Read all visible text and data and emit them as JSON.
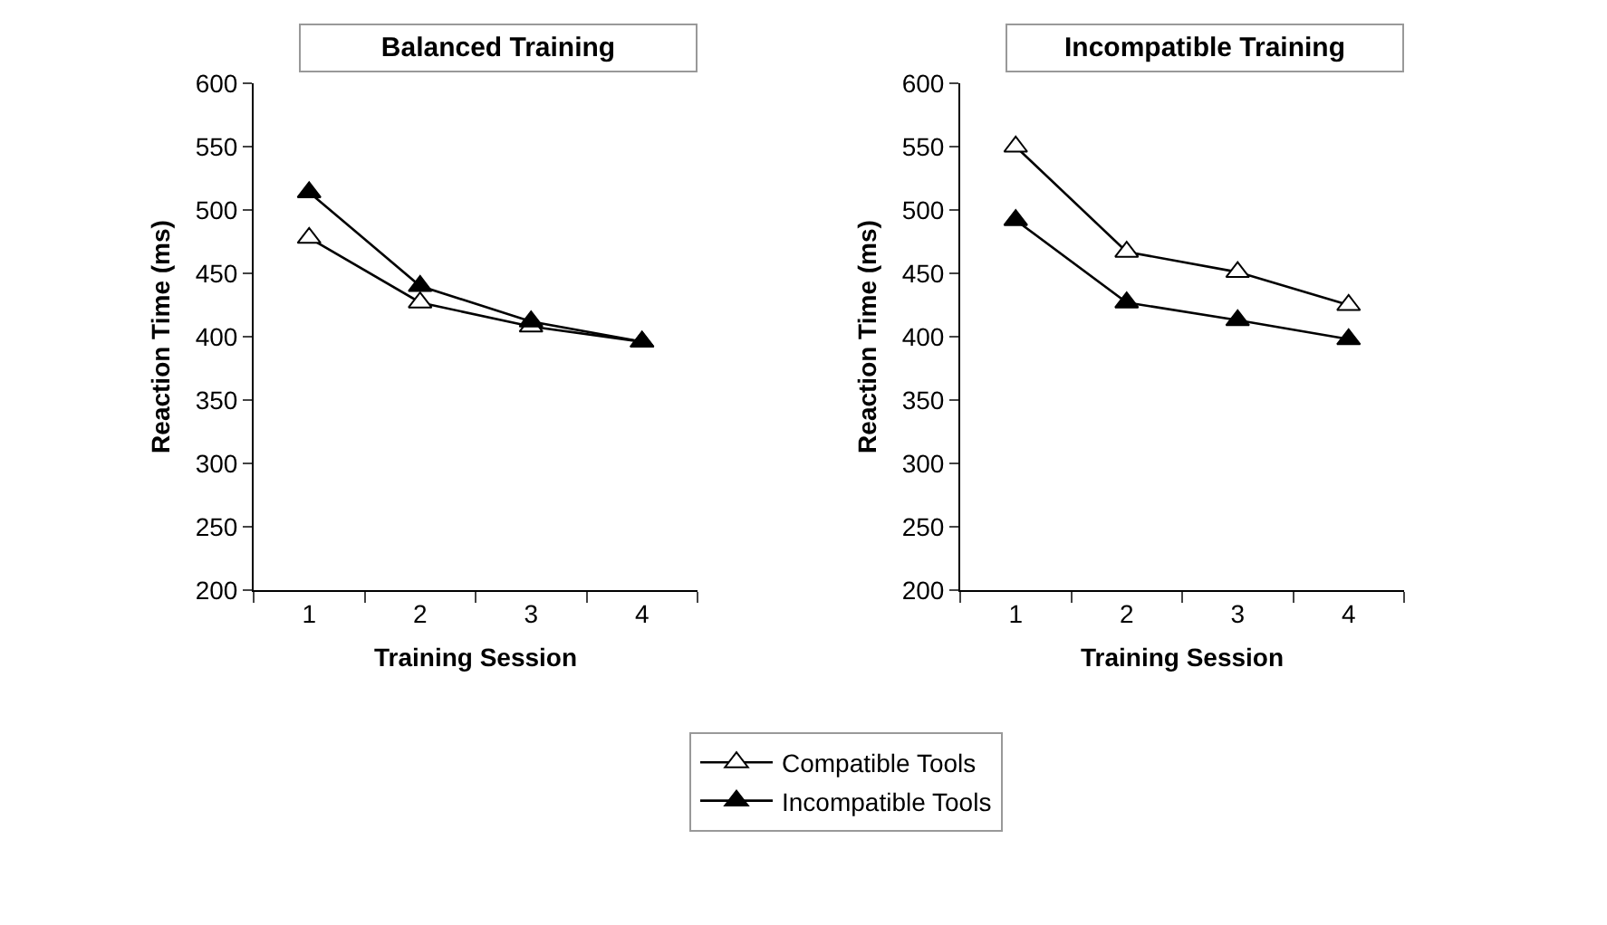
{
  "chart_data": [
    {
      "type": "line",
      "title": "Balanced Training",
      "xlabel": "Training Session",
      "ylabel": "Reaction Time (ms)",
      "categories": [
        "1",
        "2",
        "3",
        "4"
      ],
      "ylim": [
        200,
        600
      ],
      "yticks": [
        200,
        250,
        300,
        350,
        400,
        450,
        500,
        550,
        600
      ],
      "grid": false,
      "marker": "triangle",
      "legend": "bottom",
      "series": [
        {
          "name": "Compatible Tools",
          "color": "#ffffff",
          "values": [
            478,
            427,
            408,
            396
          ]
        },
        {
          "name": "Incompatible Tools",
          "color": "#000000",
          "values": [
            514,
            440,
            412,
            396
          ]
        }
      ]
    },
    {
      "type": "line",
      "title": "Incompatible Training",
      "xlabel": "Training Session",
      "ylabel": "Reaction Time (ms)",
      "categories": [
        "1",
        "2",
        "3",
        "4"
      ],
      "ylim": [
        200,
        600
      ],
      "yticks": [
        200,
        250,
        300,
        350,
        400,
        450,
        500,
        550,
        600
      ],
      "grid": false,
      "marker": "triangle",
      "series": [
        {
          "color": "#ffffff",
          "values": [
            550,
            467,
            451,
            425
          ]
        },
        {
          "color": "#000000",
          "values": [
            492,
            427,
            413,
            398
          ]
        }
      ]
    }
  ]
}
